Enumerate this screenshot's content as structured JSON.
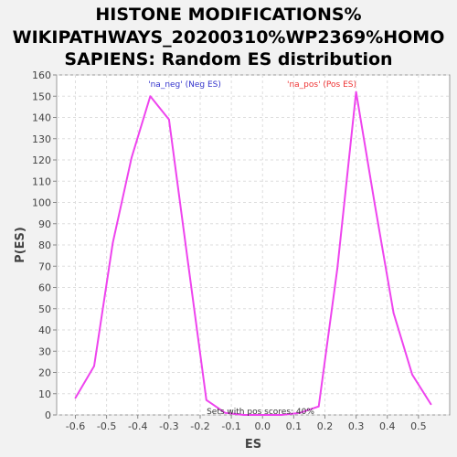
{
  "chart_data": {
    "type": "line",
    "title_lines": [
      "HISTONE MODIFICATIONS%",
      "WIKIPATHWAYS_20200310%WP2369%HOMO",
      "SAPIENS: Random ES distribution"
    ],
    "xlabel": "ES",
    "ylabel": "P(ES)",
    "xlim": [
      -0.66,
      0.6
    ],
    "ylim": [
      0,
      160
    ],
    "x_ticks": [
      "-0.6",
      "-0.5",
      "-0.4",
      "-0.3",
      "-0.2",
      "-0.1",
      "0.0",
      "0.1",
      "0.2",
      "0.3",
      "0.4",
      "0.5"
    ],
    "x_tick_values": [
      -0.6,
      -0.5,
      -0.4,
      -0.3,
      -0.2,
      -0.1,
      0.0,
      0.1,
      0.2,
      0.3,
      0.4,
      0.5
    ],
    "y_ticks": [
      "0",
      "10",
      "20",
      "30",
      "40",
      "50",
      "60",
      "70",
      "80",
      "90",
      "100",
      "110",
      "120",
      "130",
      "140",
      "150",
      "160"
    ],
    "y_tick_values": [
      0,
      10,
      20,
      30,
      40,
      50,
      60,
      70,
      80,
      90,
      100,
      110,
      120,
      130,
      140,
      150,
      160
    ],
    "grid": true,
    "series": [
      {
        "color": "#ee44ee",
        "x": [
          -0.6,
          -0.54,
          -0.48,
          -0.42,
          -0.36,
          -0.3,
          -0.24,
          -0.18,
          -0.12,
          -0.06,
          0.0,
          0.06,
          0.12,
          0.18,
          0.24,
          0.3,
          0.36,
          0.42,
          0.48,
          0.54
        ],
        "y": [
          8,
          23,
          81,
          121,
          150,
          139,
          73,
          7,
          1,
          0,
          0,
          0,
          1,
          4,
          69,
          152,
          99,
          48,
          19,
          5
        ]
      }
    ],
    "annotations": [
      {
        "text": "'na_neg' (Neg ES)",
        "color": "#3333cc"
      },
      {
        "text": "'na_pos' (Pos ES)",
        "color": "#ee3333"
      },
      {
        "text": "Sets with pos scores: 40%",
        "color": "#333333"
      }
    ]
  }
}
